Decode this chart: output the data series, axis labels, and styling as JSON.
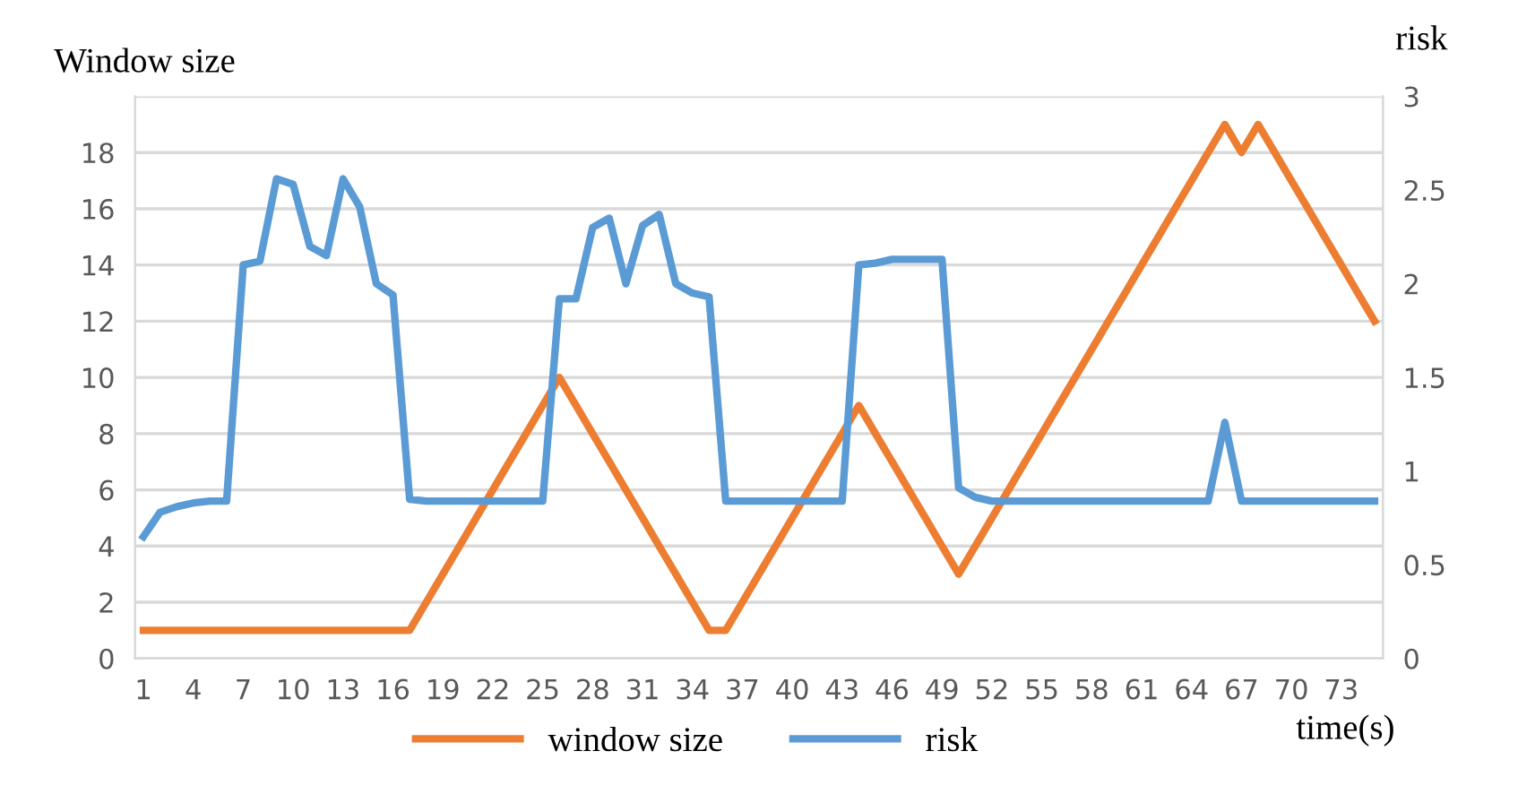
{
  "chart_data": {
    "type": "line",
    "xlabel": "time(s)",
    "ylabel": "Window size",
    "y2label": "risk",
    "categories": [
      "1",
      null,
      null,
      "4",
      null,
      null,
      "7",
      null,
      null,
      "10",
      null,
      null,
      "13",
      null,
      null,
      "16",
      null,
      null,
      "19",
      null,
      null,
      "22",
      null,
      null,
      "25",
      null,
      null,
      "28",
      null,
      null,
      "31",
      null,
      null,
      "34",
      null,
      null,
      "37",
      null,
      null,
      "40",
      null,
      null,
      "43",
      null,
      null,
      "46",
      null,
      null,
      "49",
      null,
      null,
      "52",
      null,
      null,
      "55",
      null,
      null,
      "58",
      null,
      null,
      "61",
      null,
      null,
      "64",
      null,
      null,
      "67",
      null,
      null,
      "70",
      null,
      null,
      "73",
      null,
      null
    ],
    "series": [
      {
        "name": "window size",
        "color": "#ed7d31",
        "values": [
          1,
          1,
          1,
          1,
          1,
          1,
          1,
          1,
          1,
          1,
          1,
          1,
          1,
          1,
          1,
          1,
          1,
          2,
          3,
          4,
          5,
          6,
          7,
          8,
          9,
          10,
          9,
          8,
          7,
          6,
          5,
          4,
          3,
          2,
          1,
          1,
          2,
          3,
          4,
          5,
          6,
          7,
          8,
          9,
          8,
          7,
          6,
          5,
          4,
          3,
          4,
          5,
          6,
          7,
          8,
          9,
          10,
          11,
          12,
          13,
          14,
          15,
          16,
          17,
          18,
          19,
          18,
          19,
          18,
          17,
          16,
          15,
          14,
          13,
          12
        ]
      },
      {
        "name": "risk",
        "color": "#5b9bd5",
        "axis": "y2",
        "values": [
          0.65,
          0.78,
          0.81,
          0.83,
          0.84,
          0.84,
          2.1,
          2.12,
          2.56,
          2.53,
          2.2,
          2.15,
          2.56,
          2.41,
          2.0,
          1.94,
          0.85,
          0.84,
          0.84,
          0.84,
          0.84,
          0.84,
          0.84,
          0.84,
          0.84,
          1.92,
          1.92,
          2.3,
          2.35,
          2.0,
          2.31,
          2.37,
          2.0,
          1.95,
          1.93,
          0.84,
          0.84,
          0.84,
          0.84,
          0.84,
          0.84,
          0.84,
          0.84,
          2.1,
          2.11,
          2.13,
          2.13,
          2.13,
          2.13,
          0.91,
          0.86,
          0.84,
          0.84,
          0.84,
          0.84,
          0.84,
          0.84,
          0.84,
          0.84,
          0.84,
          0.84,
          0.84,
          0.84,
          0.84,
          0.84,
          1.26,
          0.84,
          0.84,
          0.84,
          0.84,
          0.84,
          0.84,
          0.84,
          0.84,
          0.84
        ]
      }
    ],
    "ylim": [
      0,
      20
    ],
    "yticks": [
      0,
      2,
      4,
      6,
      8,
      10,
      12,
      14,
      16,
      18
    ],
    "y2lim": [
      0,
      3
    ],
    "y2ticks": [
      0,
      0.5,
      1,
      1.5,
      2,
      2.5,
      3
    ],
    "grid": "y",
    "legend": "bottom",
    "marker": "none",
    "line_style": "solid"
  }
}
